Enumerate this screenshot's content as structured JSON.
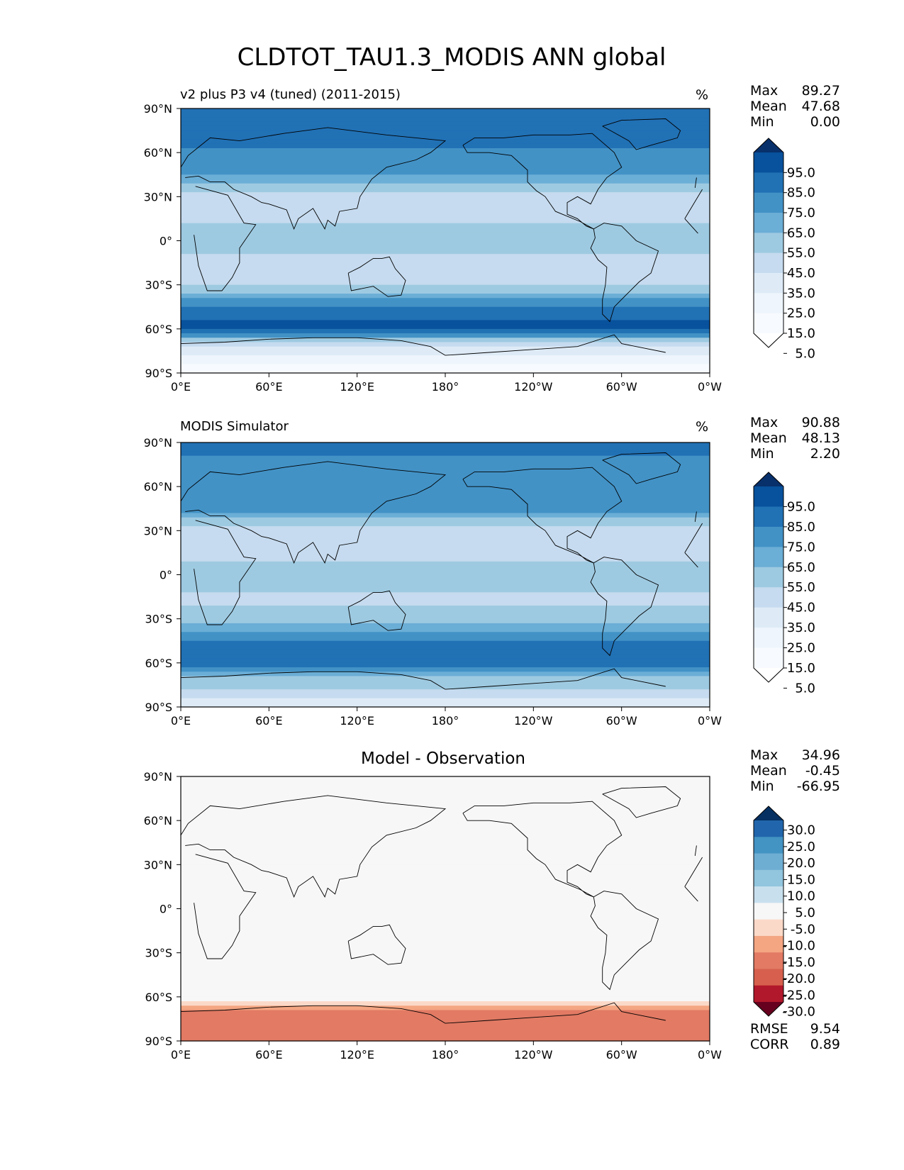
{
  "figure": {
    "title": "CLDTOT_TAU1.3_MODIS ANN global"
  },
  "chart_data": [
    {
      "type": "heatmap",
      "title": "v2 plus P3 v4 (tuned) (2011-2015)",
      "units": "%",
      "stats": {
        "Max": "89.27",
        "Mean": "47.68",
        "Min": "0.00"
      },
      "x_ticks": [
        "0°E",
        "60°E",
        "120°E",
        "180°",
        "120°W",
        "60°W",
        "0°W"
      ],
      "y_ticks": [
        "90°N",
        "60°N",
        "30°N",
        "0°",
        "30°S",
        "60°S",
        "90°S"
      ],
      "xlim": [
        0,
        360
      ],
      "ylim": [
        -90,
        90
      ],
      "colorbar": {
        "labels": [
          "95.0",
          "85.0",
          "75.0",
          "65.0",
          "55.0",
          "45.0",
          "35.0",
          "25.0",
          "15.0",
          "5.0"
        ],
        "colors": [
          "#08306b",
          "#08519c",
          "#2171b5",
          "#4292c6",
          "#6baed6",
          "#9ecae1",
          "#c6dbef",
          "#deebf7",
          "#eef5fc",
          "#f7fbff",
          "#ffffff"
        ]
      },
      "zonal_mean_profile": [
        {
          "lat": 90,
          "value": 82
        },
        {
          "lat": 75,
          "value": 80
        },
        {
          "lat": 60,
          "value": 74
        },
        {
          "lat": 45,
          "value": 66
        },
        {
          "lat": 30,
          "value": 36
        },
        {
          "lat": 15,
          "value": 42
        },
        {
          "lat": 0,
          "value": 52
        },
        {
          "lat": -15,
          "value": 40
        },
        {
          "lat": -30,
          "value": 45
        },
        {
          "lat": -45,
          "value": 78
        },
        {
          "lat": -60,
          "value": 88
        },
        {
          "lat": -70,
          "value": 40
        },
        {
          "lat": -90,
          "value": 5
        }
      ]
    },
    {
      "type": "heatmap",
      "title": "MODIS Simulator",
      "units": "%",
      "stats": {
        "Max": "90.88",
        "Mean": "48.13",
        "Min": "2.20"
      },
      "x_ticks": [
        "0°E",
        "60°E",
        "120°E",
        "180°",
        "120°W",
        "60°W",
        "0°W"
      ],
      "y_ticks": [
        "90°N",
        "60°N",
        "30°N",
        "0°",
        "30°S",
        "60°S",
        "90°S"
      ],
      "xlim": [
        0,
        360
      ],
      "ylim": [
        -90,
        90
      ],
      "colorbar": {
        "labels": [
          "95.0",
          "85.0",
          "75.0",
          "65.0",
          "55.0",
          "45.0",
          "35.0",
          "25.0",
          "15.0",
          "5.0"
        ],
        "colors": [
          "#08306b",
          "#08519c",
          "#2171b5",
          "#4292c6",
          "#6baed6",
          "#9ecae1",
          "#c6dbef",
          "#deebf7",
          "#eef5fc",
          "#f7fbff",
          "#ffffff"
        ]
      },
      "zonal_mean_profile": [
        {
          "lat": 90,
          "value": 76
        },
        {
          "lat": 75,
          "value": 74
        },
        {
          "lat": 60,
          "value": 70
        },
        {
          "lat": 45,
          "value": 68
        },
        {
          "lat": 30,
          "value": 40
        },
        {
          "lat": 15,
          "value": 40
        },
        {
          "lat": 0,
          "value": 52
        },
        {
          "lat": -15,
          "value": 42
        },
        {
          "lat": -30,
          "value": 50
        },
        {
          "lat": -45,
          "value": 75
        },
        {
          "lat": -60,
          "value": 85
        },
        {
          "lat": -70,
          "value": 55
        },
        {
          "lat": -90,
          "value": 25
        }
      ]
    },
    {
      "type": "heatmap",
      "title": "Model - Observation",
      "units": "",
      "stats": {
        "Max": "34.96",
        "Mean": "-0.45",
        "Min": "-66.95"
      },
      "metrics": {
        "RMSE": "9.54",
        "CORR": "0.89"
      },
      "x_ticks": [
        "0°E",
        "60°E",
        "120°E",
        "180°",
        "120°W",
        "60°W",
        "0°W"
      ],
      "y_ticks": [
        "90°N",
        "60°N",
        "30°N",
        "0°",
        "30°S",
        "60°S",
        "90°S"
      ],
      "xlim": [
        0,
        360
      ],
      "ylim": [
        -90,
        90
      ],
      "colorbar": {
        "labels": [
          "30.0",
          "25.0",
          "20.0",
          "15.0",
          "10.0",
          "5.0",
          "-5.0",
          "-10.0",
          "-15.0",
          "-20.0",
          "-25.0",
          "-30.0"
        ],
        "colors": [
          "#053061",
          "#2166ac",
          "#4393c3",
          "#6faed3",
          "#92c5de",
          "#c8e0ee",
          "#f7f7f7",
          "#fbd9c8",
          "#f4a582",
          "#e27a64",
          "#d6604d",
          "#b2182b",
          "#67001f"
        ]
      },
      "zonal_mean_profile": [
        {
          "lat": 90,
          "value": 4
        },
        {
          "lat": 75,
          "value": 3
        },
        {
          "lat": 60,
          "value": 2
        },
        {
          "lat": 45,
          "value": -1
        },
        {
          "lat": 30,
          "value": -3
        },
        {
          "lat": 15,
          "value": 2
        },
        {
          "lat": 0,
          "value": -2
        },
        {
          "lat": -15,
          "value": 1
        },
        {
          "lat": -30,
          "value": -3
        },
        {
          "lat": -45,
          "value": 3
        },
        {
          "lat": -60,
          "value": 2
        },
        {
          "lat": -70,
          "value": -15
        },
        {
          "lat": -90,
          "value": -20
        }
      ]
    }
  ]
}
